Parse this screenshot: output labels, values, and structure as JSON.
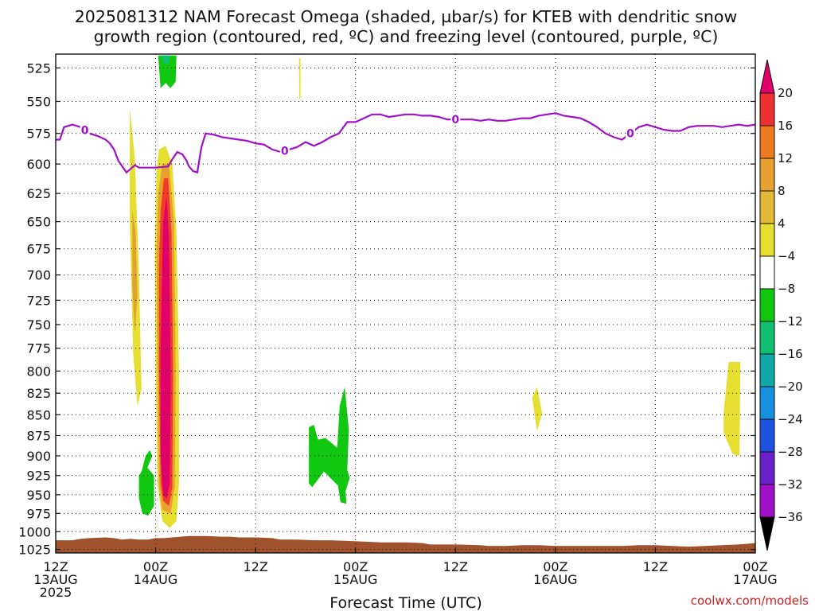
{
  "title_line1": "2025081312 NAM Forecast Omega (shaded, µbar/s) for KTEB with dendritic snow",
  "title_line2": "growth region (contoured, red, ºC) and freezing level (contoured, purple, ºC)",
  "credit": "coolwx.com/models",
  "chart_data": {
    "type": "time-height cross-section",
    "xlabel": "Forecast Time (UTC)",
    "x_axis": {
      "range_hours": [
        0,
        84
      ],
      "ticks": [
        {
          "hour": 0,
          "l1": "12Z",
          "l2": "13AUG",
          "l3": "2025"
        },
        {
          "hour": 12,
          "l1": "00Z",
          "l2": "14AUG",
          "l3": ""
        },
        {
          "hour": 24,
          "l1": "12Z",
          "l2": "",
          "l3": ""
        },
        {
          "hour": 36,
          "l1": "00Z",
          "l2": "15AUG",
          "l3": ""
        },
        {
          "hour": 48,
          "l1": "12Z",
          "l2": "",
          "l3": ""
        },
        {
          "hour": 60,
          "l1": "00Z",
          "l2": "16AUG",
          "l3": ""
        },
        {
          "hour": 72,
          "l1": "12Z",
          "l2": "",
          "l3": ""
        },
        {
          "hour": 84,
          "l1": "00Z",
          "l2": "17AUG",
          "l3": ""
        }
      ]
    },
    "y_axis": {
      "unit": "hPa",
      "scale": "log",
      "range": [
        515,
        1030
      ],
      "ticks": [
        525,
        550,
        575,
        600,
        625,
        650,
        675,
        700,
        725,
        750,
        775,
        800,
        825,
        850,
        875,
        900,
        925,
        950,
        975,
        1000,
        1025
      ]
    },
    "grid": true,
    "colorbar": {
      "boundaries": [
        20,
        16,
        12,
        8,
        4,
        -4,
        -8,
        -12,
        -16,
        -20,
        -24,
        -28,
        -32,
        -36
      ],
      "colors": [
        "#e0006a",
        "#f03030",
        "#ee7a20",
        "#e8a030",
        "#e4b838",
        "#e6de30",
        "#ffffff",
        "#10c810",
        "#10c070",
        "#10a8a8",
        "#1890e0",
        "#2050e0",
        "#6a20c8",
        "#a010c8",
        "#a8a8a8"
      ]
    },
    "omega_regions": [
      {
        "color": "#e6de30",
        "points": [
          [
            8.9,
            555
          ],
          [
            9.5,
            595
          ],
          [
            10.0,
            700
          ],
          [
            10.3,
            820
          ],
          [
            9.8,
            840
          ],
          [
            9.3,
            780
          ],
          [
            8.9,
            650
          ]
        ]
      },
      {
        "color": "#e4a030",
        "points": [
          [
            9.2,
            640
          ],
          [
            9.6,
            660
          ],
          [
            9.8,
            720
          ],
          [
            9.5,
            760
          ],
          [
            9.2,
            710
          ]
        ]
      },
      {
        "color": "#e6de30",
        "points": [
          [
            12.1,
            605
          ],
          [
            12.4,
            588
          ],
          [
            13.2,
            585
          ],
          [
            14.0,
            600
          ],
          [
            14.5,
            660
          ],
          [
            14.8,
            800
          ],
          [
            14.8,
            935
          ],
          [
            14.5,
            985
          ],
          [
            13.7,
            995
          ],
          [
            12.8,
            985
          ],
          [
            12.2,
            935
          ],
          [
            12.0,
            800
          ],
          [
            11.9,
            680
          ]
        ]
      },
      {
        "color": "#e8a030",
        "points": [
          [
            12.3,
            625
          ],
          [
            12.8,
            600
          ],
          [
            13.6,
            600
          ],
          [
            14.2,
            650
          ],
          [
            14.4,
            800
          ],
          [
            14.3,
            940
          ],
          [
            13.8,
            975
          ],
          [
            12.8,
            970
          ],
          [
            12.4,
            940
          ],
          [
            12.2,
            800
          ],
          [
            12.1,
            680
          ]
        ]
      },
      {
        "color": "#f03a2a",
        "points": [
          [
            12.6,
            640
          ],
          [
            13.0,
            612
          ],
          [
            13.5,
            612
          ],
          [
            13.9,
            660
          ],
          [
            14.1,
            800
          ],
          [
            14.0,
            940
          ],
          [
            13.6,
            965
          ],
          [
            12.9,
            958
          ],
          [
            12.6,
            935
          ],
          [
            12.4,
            800
          ],
          [
            12.4,
            690
          ]
        ]
      },
      {
        "color": "#e0006a",
        "points": [
          [
            12.9,
            650
          ],
          [
            13.3,
            628
          ],
          [
            13.6,
            665
          ],
          [
            13.8,
            800
          ],
          [
            13.7,
            935
          ],
          [
            13.3,
            955
          ],
          [
            12.9,
            950
          ],
          [
            12.6,
            900
          ],
          [
            12.6,
            780
          ]
        ]
      },
      {
        "color": "#10c810",
        "points": [
          [
            11.3,
            893
          ],
          [
            11.6,
            900
          ],
          [
            11.0,
            915
          ],
          [
            11.8,
            925
          ],
          [
            11.8,
            965
          ],
          [
            11.1,
            978
          ],
          [
            10.4,
            975
          ],
          [
            10.0,
            955
          ],
          [
            10.0,
            925
          ],
          [
            10.3,
            920
          ],
          [
            10.8,
            900
          ]
        ]
      },
      {
        "color": "#10c810",
        "points": [
          [
            12.3,
            516
          ],
          [
            14.5,
            516
          ],
          [
            14.4,
            535
          ],
          [
            13.8,
            540
          ],
          [
            13.2,
            536
          ],
          [
            12.6,
            540
          ]
        ]
      },
      {
        "color": "#10c070",
        "points": [
          [
            12.6,
            516
          ],
          [
            13.8,
            516
          ],
          [
            13.5,
            522
          ],
          [
            13.0,
            522
          ]
        ]
      },
      {
        "color": "#10c810",
        "points": [
          [
            30.4,
            865
          ],
          [
            31.0,
            862
          ],
          [
            31.5,
            880
          ],
          [
            32.4,
            878
          ],
          [
            33.8,
            890
          ],
          [
            34.1,
            840
          ],
          [
            34.7,
            818
          ],
          [
            35.2,
            868
          ],
          [
            35.0,
            918
          ],
          [
            35.3,
            928
          ],
          [
            34.8,
            945
          ],
          [
            34.9,
            962
          ],
          [
            34.2,
            960
          ],
          [
            33.9,
            938
          ],
          [
            32.2,
            920
          ],
          [
            30.8,
            940
          ],
          [
            30.4,
            935
          ]
        ]
      },
      {
        "color": "#e6de30",
        "points": [
          [
            29.2,
            518
          ],
          [
            29.4,
            518
          ],
          [
            29.4,
            548
          ],
          [
            29.25,
            548
          ]
        ]
      },
      {
        "color": "#e6de30",
        "points": [
          [
            57.2,
            830
          ],
          [
            57.8,
            818
          ],
          [
            58.4,
            848
          ],
          [
            57.8,
            870
          ]
        ]
      },
      {
        "color": "#e6de30",
        "points": [
          [
            80.2,
            848
          ],
          [
            80.8,
            790
          ],
          [
            82.2,
            790
          ],
          [
            82.1,
            900
          ],
          [
            81.3,
            898
          ],
          [
            80.2,
            872
          ]
        ]
      }
    ],
    "freezing_level": {
      "color": "#a010c8",
      "label": "0",
      "points": [
        [
          0,
          580
        ],
        [
          0.5,
          580
        ],
        [
          1,
          570
        ],
        [
          2,
          568
        ],
        [
          3,
          570
        ],
        [
          4,
          575
        ],
        [
          5,
          577
        ],
        [
          6,
          580
        ],
        [
          6.5,
          583
        ],
        [
          7,
          588
        ],
        [
          7.5,
          597
        ],
        [
          8,
          602
        ],
        [
          8.5,
          607
        ],
        [
          9,
          604
        ],
        [
          9.5,
          601
        ],
        [
          10,
          603
        ],
        [
          11,
          603
        ],
        [
          12,
          603
        ],
        [
          13.5,
          602
        ],
        [
          14,
          596
        ],
        [
          14.6,
          590
        ],
        [
          15.2,
          592
        ],
        [
          15.7,
          597
        ],
        [
          16,
          602
        ],
        [
          16.5,
          606
        ],
        [
          17,
          607
        ],
        [
          17.5,
          586
        ],
        [
          18,
          575
        ],
        [
          19,
          576
        ],
        [
          20,
          578
        ],
        [
          21,
          579
        ],
        [
          22,
          580
        ],
        [
          23,
          581
        ],
        [
          24,
          583
        ],
        [
          25,
          584
        ],
        [
          26,
          588
        ],
        [
          27,
          590
        ],
        [
          28,
          588
        ],
        [
          29,
          586
        ],
        [
          30,
          582
        ],
        [
          31,
          585
        ],
        [
          32,
          582
        ],
        [
          33,
          578
        ],
        [
          34,
          575
        ],
        [
          35,
          566
        ],
        [
          36,
          566
        ],
        [
          37,
          563
        ],
        [
          38,
          560
        ],
        [
          39,
          560
        ],
        [
          40,
          562
        ],
        [
          41,
          561
        ],
        [
          42,
          560
        ],
        [
          43,
          560
        ],
        [
          44,
          561
        ],
        [
          45,
          561
        ],
        [
          46,
          562
        ],
        [
          47,
          564
        ],
        [
          48,
          564
        ],
        [
          49,
          564
        ],
        [
          50,
          564
        ],
        [
          51,
          565
        ],
        [
          52,
          564
        ],
        [
          53,
          565
        ],
        [
          54,
          565
        ],
        [
          55,
          564
        ],
        [
          56,
          563
        ],
        [
          57,
          563
        ],
        [
          58,
          561
        ],
        [
          59,
          560
        ],
        [
          60,
          559
        ],
        [
          61,
          561
        ],
        [
          62,
          562
        ],
        [
          63,
          563
        ],
        [
          64,
          566
        ],
        [
          65,
          570
        ],
        [
          66,
          575
        ],
        [
          67,
          578
        ],
        [
          68,
          580
        ],
        [
          69,
          575
        ],
        [
          70,
          570
        ],
        [
          71,
          568
        ],
        [
          72,
          570
        ],
        [
          73,
          572
        ],
        [
          74,
          573
        ],
        [
          75,
          573
        ],
        [
          76,
          570
        ],
        [
          77,
          569
        ],
        [
          78,
          569
        ],
        [
          79,
          569
        ],
        [
          80,
          570
        ],
        [
          81,
          569
        ],
        [
          82,
          568
        ],
        [
          83,
          569
        ],
        [
          84,
          568
        ]
      ],
      "label_hours": [
        3.5,
        27.5,
        48,
        69
      ]
    },
    "terrain": {
      "color": "#a0522d",
      "points": [
        [
          0,
          1012
        ],
        [
          2,
          1012
        ],
        [
          3,
          1010
        ],
        [
          4,
          1009
        ],
        [
          6,
          1008
        ],
        [
          7,
          1009
        ],
        [
          8,
          1011
        ],
        [
          9,
          1010
        ],
        [
          10,
          1011
        ],
        [
          11,
          1011
        ],
        [
          12,
          1009
        ],
        [
          13,
          1009
        ],
        [
          14,
          1008
        ],
        [
          15,
          1007
        ],
        [
          16,
          1006
        ],
        [
          17,
          1006
        ],
        [
          18,
          1006
        ],
        [
          20,
          1007
        ],
        [
          21,
          1007
        ],
        [
          22,
          1008
        ],
        [
          23,
          1008
        ],
        [
          24,
          1008
        ],
        [
          26,
          1009
        ],
        [
          27,
          1011
        ],
        [
          29,
          1011
        ],
        [
          31,
          1012
        ],
        [
          33,
          1012
        ],
        [
          35,
          1013
        ],
        [
          37,
          1014
        ],
        [
          39,
          1015
        ],
        [
          42,
          1015
        ],
        [
          44,
          1016
        ],
        [
          45,
          1018
        ],
        [
          47,
          1018
        ],
        [
          48,
          1018
        ],
        [
          51,
          1019
        ],
        [
          52,
          1020
        ],
        [
          54,
          1020
        ],
        [
          56,
          1019
        ],
        [
          58,
          1019
        ],
        [
          60,
          1020
        ],
        [
          64,
          1020
        ],
        [
          68,
          1020
        ],
        [
          70,
          1019
        ],
        [
          72,
          1019
        ],
        [
          74,
          1020
        ],
        [
          76,
          1021
        ],
        [
          78,
          1020
        ],
        [
          80,
          1019
        ],
        [
          82,
          1018
        ],
        [
          84,
          1016
        ]
      ]
    }
  }
}
